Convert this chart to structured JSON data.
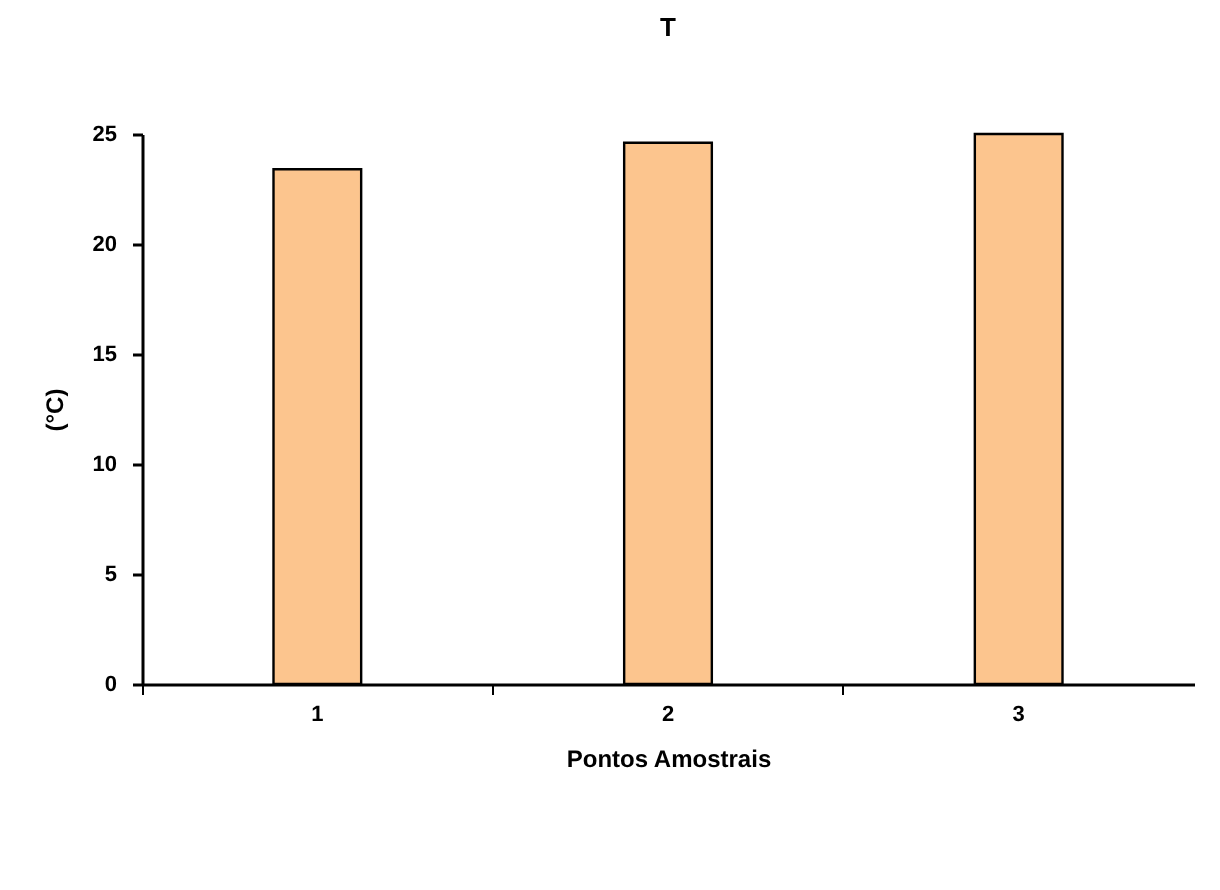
{
  "chart_data": {
    "type": "bar",
    "title": "T",
    "xlabel": "Pontos Amostrais",
    "ylabel": "(°C)",
    "categories": [
      "1",
      "2",
      "3"
    ],
    "values": [
      23.4,
      24.6,
      25.0
    ],
    "color": "#fcc58e",
    "ylim": [
      0,
      25
    ],
    "yticks": [
      0,
      5,
      10,
      15,
      20,
      25
    ],
    "grid": false,
    "legend": false
  }
}
